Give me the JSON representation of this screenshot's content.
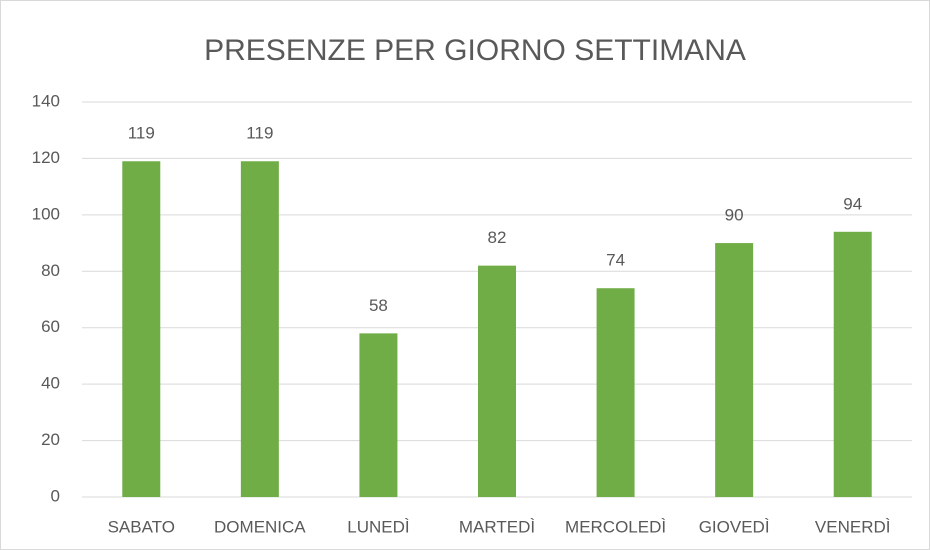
{
  "chart_data": {
    "type": "bar",
    "title": "PRESENZE PER GIORNO SETTIMANA",
    "categories": [
      "SABATO",
      "DOMENICA",
      "LUNEDÌ",
      "MARTEDÌ",
      "MERCOLEDÌ",
      "GIOVEDÌ",
      "VENERDÌ"
    ],
    "values": [
      119,
      119,
      58,
      82,
      74,
      90,
      94
    ],
    "color": "#70ad47",
    "ylim": [
      0,
      140
    ],
    "yticks": [
      0,
      20,
      40,
      60,
      80,
      100,
      120,
      140
    ],
    "grid": true
  }
}
